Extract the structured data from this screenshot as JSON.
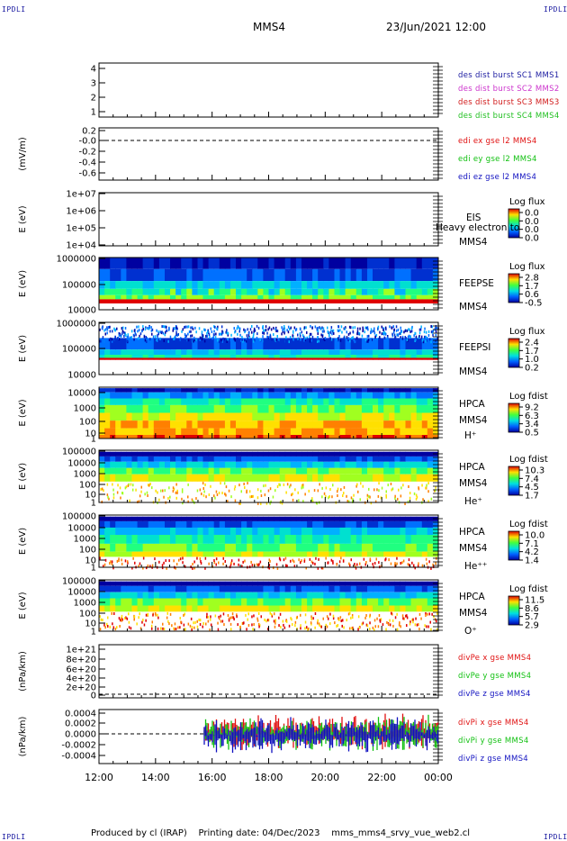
{
  "header": {
    "mission": "MMS4",
    "date": "23/Jun/2021 12:00",
    "corner": "IPDLI"
  },
  "footer": "Produced by cl (IRAP)    Printing date: 04/Dec/2023    mms_mms4_srvy_vue_web2.cl",
  "colors": {
    "mms1": "#1a1aa0",
    "mms2": "#cc33cc",
    "mms3": "#d11a1a",
    "mms4": "#1fbf1f",
    "ex": "#e01010",
    "ey": "#10c010",
    "ez": "#1010c0"
  },
  "chart_data": [
    {
      "type": "line",
      "panel": "des",
      "yticks": [
        "4",
        "3",
        "2",
        "1"
      ],
      "legend": [
        {
          "text": "des dist burst SC1 MMS1",
          "color": "mms1"
        },
        {
          "text": "des dist burst SC2 MMS2",
          "color": "mms2"
        },
        {
          "text": "des dist burst SC3 MMS3",
          "color": "mms3"
        },
        {
          "text": "des dist burst SC4 MMS4",
          "color": "mms4"
        }
      ]
    },
    {
      "type": "line",
      "panel": "edi",
      "ylabel": "(mV/m)",
      "yticks": [
        "0.2",
        "-0.0",
        "-0.2",
        "-0.4",
        "-0.6"
      ],
      "legend": [
        {
          "text": "edi ex gse l2 MMS4",
          "color": "ex"
        },
        {
          "text": "edi ey gse l2 MMS4",
          "color": "ey"
        },
        {
          "text": "edi ez gse l2 MMS4",
          "color": "ez"
        }
      ]
    },
    {
      "type": "heatmap",
      "panel": "eis",
      "ylabel": "E (eV)",
      "yticks": [
        "1e+07",
        "1e+06",
        "1e+05",
        "1e+04"
      ],
      "instrument": [
        "EIS",
        "MMS4"
      ],
      "overlay": "Heavy electron to",
      "cbar_title": "Log flux",
      "cbar_ticks": [
        "0.0",
        "0.0",
        "0.0",
        "0.0"
      ]
    },
    {
      "type": "heatmap",
      "panel": "feepse",
      "ylabel": "E (eV)",
      "yticks": [
        "1000000",
        "100000",
        "10000"
      ],
      "instrument": [
        "FEEPSE",
        "MMS4"
      ],
      "cbar_title": "Log flux",
      "cbar_ticks": [
        "2.8",
        "1.7",
        "0.6",
        "-0.5"
      ]
    },
    {
      "type": "heatmap",
      "panel": "feepsi",
      "ylabel": "E (eV)",
      "yticks": [
        "1000000",
        "100000",
        "10000"
      ],
      "instrument": [
        "FEEPSI",
        "MMS4"
      ],
      "cbar_title": "Log flux",
      "cbar_ticks": [
        "2.4",
        "1.7",
        "1.0",
        "0.2"
      ]
    },
    {
      "type": "heatmap",
      "panel": "hpca_h",
      "ylabel": "E (eV)",
      "yticks": [
        "10000",
        "1000",
        "100",
        "10",
        "1"
      ],
      "instrument": [
        "HPCA",
        "MMS4",
        "H⁺"
      ],
      "cbar_title": "Log fdist",
      "cbar_ticks": [
        "9.2",
        "6.3",
        "3.4",
        "0.5"
      ]
    },
    {
      "type": "heatmap",
      "panel": "hpca_he",
      "ylabel": "E (eV)",
      "yticks": [
        "100000",
        "10000",
        "1000",
        "100",
        "10",
        "1"
      ],
      "instrument": [
        "HPCA",
        "MMS4",
        "He⁺"
      ],
      "cbar_title": "Log fdist",
      "cbar_ticks": [
        "10.3",
        "7.4",
        "4.5",
        "1.7"
      ]
    },
    {
      "type": "heatmap",
      "panel": "hpca_hepp",
      "ylabel": "E (eV)",
      "yticks": [
        "100000",
        "10000",
        "1000",
        "100",
        "10",
        "1"
      ],
      "instrument": [
        "HPCA",
        "MMS4",
        "He⁺⁺"
      ],
      "cbar_title": "Log fdist",
      "cbar_ticks": [
        "10.0",
        "7.1",
        "4.2",
        "1.4"
      ]
    },
    {
      "type": "heatmap",
      "panel": "hpca_o",
      "ylabel": "E (eV)",
      "yticks": [
        "100000",
        "10000",
        "1000",
        "100",
        "10",
        "1"
      ],
      "instrument": [
        "HPCA",
        "MMS4",
        "O⁺"
      ],
      "cbar_title": "Log fdist",
      "cbar_ticks": [
        "11.5",
        "8.6",
        "5.7",
        "2.9"
      ]
    },
    {
      "type": "line",
      "panel": "divpe",
      "ylabel": "(nPa/km)",
      "yticks": [
        "1e+21",
        "8e+20",
        "6e+20",
        "4e+20",
        "2e+20",
        "0"
      ],
      "legend": [
        {
          "text": "divPe x gse MMS4",
          "color": "ex"
        },
        {
          "text": "divPe y gse MMS4",
          "color": "ey"
        },
        {
          "text": "divPe z gse MMS4",
          "color": "ez"
        }
      ]
    },
    {
      "type": "line",
      "panel": "divpi",
      "ylabel": "(nPa/km)",
      "yticks": [
        "0.0004",
        "0.0002",
        "0.0000",
        "-0.0002",
        "-0.0004"
      ],
      "legend": [
        {
          "text": "divPi x gse MMS4",
          "color": "ex"
        },
        {
          "text": "divPi y gse MMS4",
          "color": "ey"
        },
        {
          "text": "divPi z gse MMS4",
          "color": "ez"
        }
      ]
    }
  ],
  "xaxis": {
    "ticks": [
      "12:00",
      "14:00",
      "16:00",
      "18:00",
      "20:00",
      "22:00",
      "00:00"
    ]
  }
}
